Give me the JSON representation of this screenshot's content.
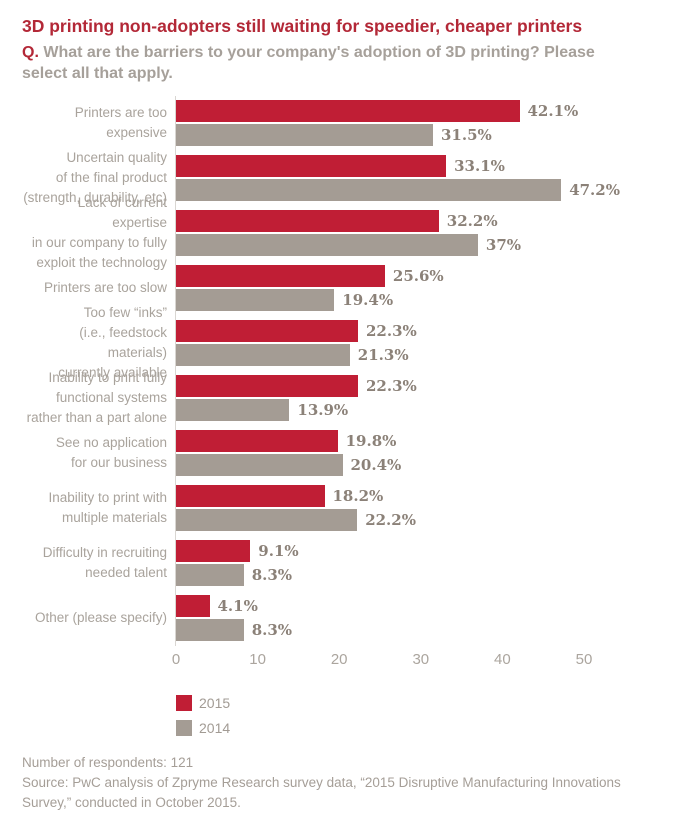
{
  "header": {
    "title": "3D printing non-adopters still waiting for speedier, cheaper printers",
    "question_prefix": "Q.",
    "question_text": "What are the barriers to your company's adoption of 3D printing? Please select all that apply."
  },
  "colors": {
    "title_red": "#b32837",
    "bar_red": "#c01e35",
    "bar_gray": "#a49c94",
    "label_gray": "#a9a39c",
    "value_gray": "#8b8178",
    "axis_line_gray": "#d9d6d2"
  },
  "chart_data": {
    "type": "bar",
    "orientation": "horizontal",
    "title": "3D printing non-adopters still waiting for speedier, cheaper printers",
    "xlabel": "",
    "ylabel": "",
    "xlim": [
      0,
      50
    ],
    "xticks": [
      0,
      10,
      20,
      30,
      40,
      50
    ],
    "grid": false,
    "legend_position": "bottom-left",
    "categories": [
      {
        "label": "Printers are too expensive",
        "lines": [
          "Printers are too expensive"
        ]
      },
      {
        "label": "Uncertain quality of the final product (strength, durability, etc)",
        "lines": [
          "Uncertain quality",
          "of the final product",
          "(strength, durability, etc)"
        ]
      },
      {
        "label": "Lack of current expertise in our company to fully exploit the technology",
        "lines": [
          "Lack of current expertise",
          "in our company to fully",
          "exploit the technology"
        ]
      },
      {
        "label": "Printers are too slow",
        "lines": [
          "Printers are too slow"
        ]
      },
      {
        "label": "Too few “inks” (i.e., feedstock materials) currently available",
        "lines": [
          "Too few “inks”",
          "(i.e., feedstock materials)",
          "currently available"
        ]
      },
      {
        "label": "Inability to print fully functional systems rather than a part alone",
        "lines": [
          "Inability to print fully",
          "functional systems",
          "rather than a part alone"
        ]
      },
      {
        "label": "See no application for our business",
        "lines": [
          "See no application",
          "for our business"
        ]
      },
      {
        "label": "Inability to print with multiple materials",
        "lines": [
          "Inability to print with",
          "multiple materials"
        ]
      },
      {
        "label": "Difficulty in recruiting needed talent",
        "lines": [
          "Difficulty in recruiting",
          "needed talent"
        ]
      },
      {
        "label": "Other (please specify)",
        "lines": [
          "Other (please specify)"
        ]
      }
    ],
    "series": [
      {
        "name": "2015",
        "color": "#c01e35",
        "values": [
          42.1,
          33.1,
          32.2,
          25.6,
          22.3,
          22.3,
          19.8,
          18.2,
          9.1,
          4.1
        ],
        "labels": [
          "42.1%",
          "33.1%",
          "32.2%",
          "25.6%",
          "22.3%",
          "22.3%",
          "19.8%",
          "18.2%",
          "9.1%",
          "4.1%"
        ]
      },
      {
        "name": "2014",
        "color": "#a49c94",
        "values": [
          31.5,
          47.2,
          37,
          19.4,
          21.3,
          13.9,
          20.4,
          22.2,
          8.3,
          8.3
        ],
        "labels": [
          "31.5%",
          "47.2%",
          "37%",
          "19.4%",
          "21.3%",
          "13.9%",
          "20.4%",
          "22.2%",
          "8.3%",
          "8.3%"
        ]
      }
    ]
  },
  "footer": {
    "respondents": "Number of respondents: 121",
    "source": "Source: PwC analysis of Zpryme Research survey data, “2015 Disruptive Manufacturing Innovations Survey,” conducted in October 2015."
  }
}
